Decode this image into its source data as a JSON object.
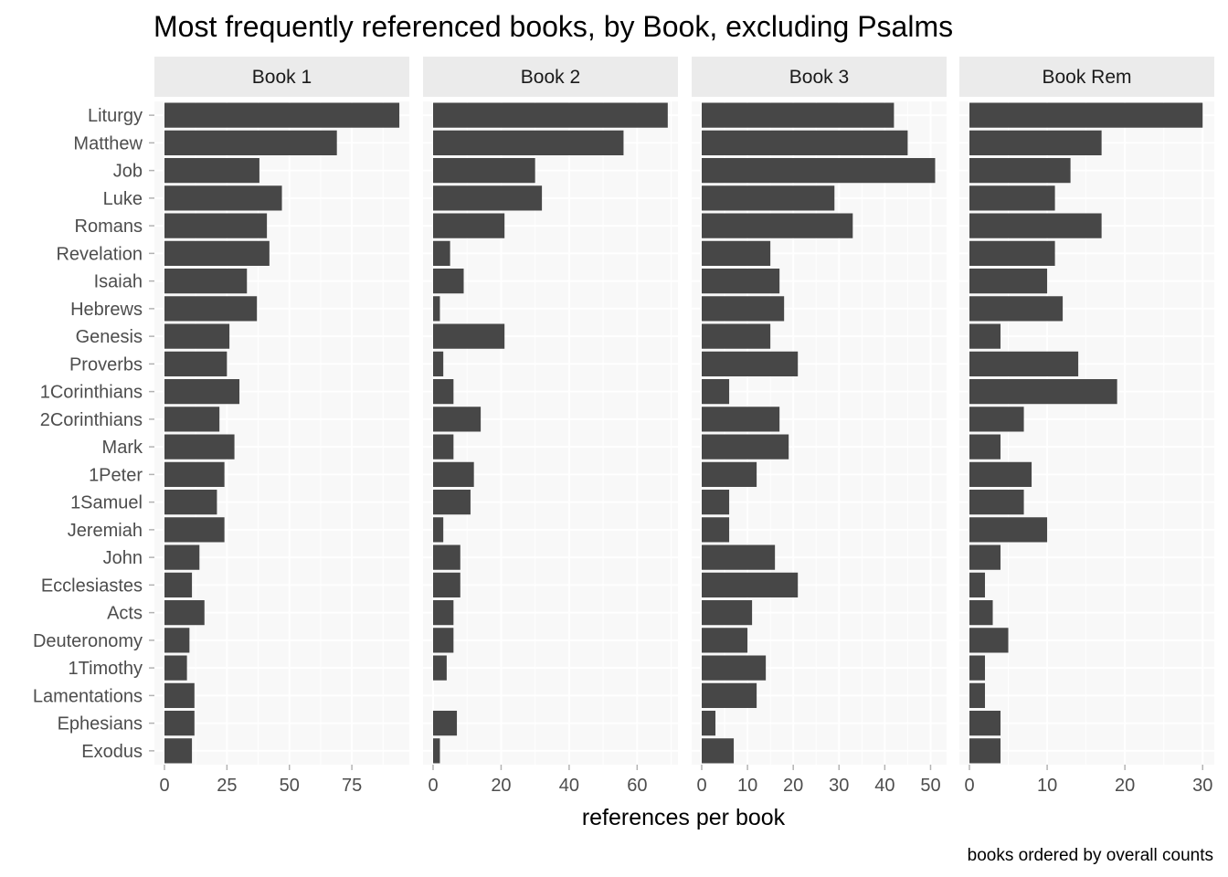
{
  "chart_data": {
    "type": "bar",
    "orientation": "horizontal",
    "faceted": true,
    "title": "Most frequently referenced books, by Book, excluding Psalms",
    "xlabel": "references per book",
    "ylabel": "",
    "caption": "books ordered by overall counts",
    "legend": "none",
    "grid": true,
    "categories": [
      "Liturgy",
      "Matthew",
      "Job",
      "Luke",
      "Romans",
      "Revelation",
      "Isaiah",
      "Hebrews",
      "Genesis",
      "Proverbs",
      "1Corinthians",
      "2Corinthians",
      "Mark",
      "1Peter",
      "1Samuel",
      "Jeremiah",
      "John",
      "Ecclesiastes",
      "Acts",
      "Deuteronomy",
      "1Timothy",
      "Lamentations",
      "Ephesians",
      "Exodus"
    ],
    "panels": [
      {
        "name": "Book 1",
        "xlim": [
          0,
          98
        ],
        "ticks": [
          0,
          25,
          50,
          75
        ],
        "tick_labels": [
          "0",
          "25",
          "50",
          "75"
        ],
        "values": [
          94,
          69,
          38,
          47,
          41,
          42,
          33,
          37,
          26,
          25,
          30,
          22,
          28,
          24,
          21,
          24,
          14,
          11,
          16,
          10,
          9,
          12,
          12,
          11
        ]
      },
      {
        "name": "Book 2",
        "xlim": [
          0,
          72
        ],
        "ticks": [
          0,
          20,
          40,
          60
        ],
        "tick_labels": [
          "0",
          "20",
          "40",
          "60"
        ],
        "values": [
          69,
          56,
          30,
          32,
          21,
          5,
          9,
          2,
          21,
          3,
          6,
          14,
          6,
          12,
          11,
          3,
          8,
          8,
          6,
          6,
          4,
          0,
          7,
          2
        ]
      },
      {
        "name": "Book 3",
        "xlim": [
          0,
          53.5
        ],
        "ticks": [
          0,
          10,
          20,
          30,
          40,
          50
        ],
        "tick_labels": [
          "0",
          "10",
          "20",
          "30",
          "40",
          "50"
        ],
        "values": [
          42,
          45,
          51,
          29,
          33,
          15,
          17,
          18,
          15,
          21,
          6,
          17,
          19,
          12,
          6,
          6,
          16,
          21,
          11,
          10,
          14,
          12,
          3,
          7
        ]
      },
      {
        "name": "Book Rem",
        "xlim": [
          0,
          31.5
        ],
        "ticks": [
          0,
          10,
          20,
          30
        ],
        "tick_labels": [
          "0",
          "10",
          "20",
          "30"
        ],
        "values": [
          30,
          17,
          13,
          11,
          17,
          11,
          10,
          12,
          4,
          14,
          19,
          7,
          4,
          8,
          7,
          10,
          4,
          2,
          3,
          5,
          2,
          2,
          4,
          4
        ]
      }
    ]
  },
  "colors": {
    "bar": "#474747",
    "panel_bg": "#f8f8f8",
    "grid": "#ffffff",
    "strip_bg": "#ebebeb",
    "text": "#000000",
    "axis_text": "#4d4d4d",
    "tick": "#b3b3b3"
  }
}
